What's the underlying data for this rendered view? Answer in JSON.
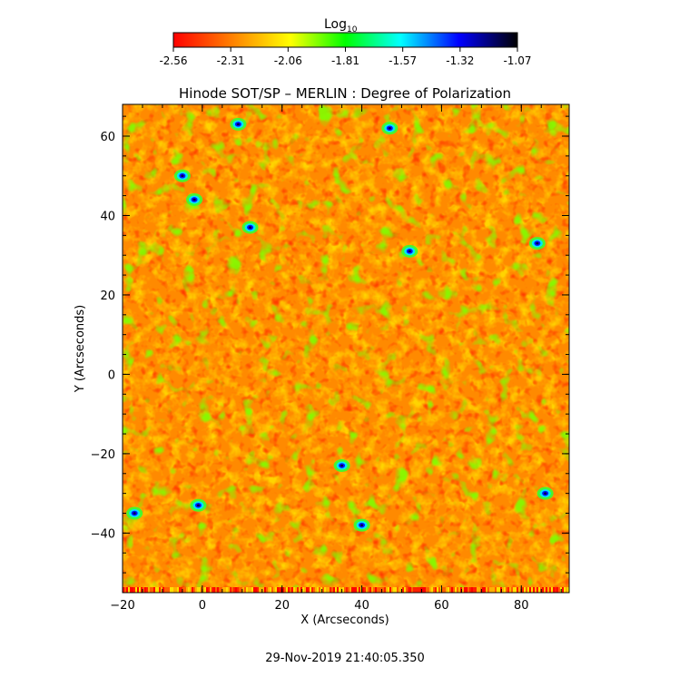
{
  "colorbar": {
    "title_main": "Log",
    "title_sub": "10",
    "ticks": [
      "-2.56",
      "-2.31",
      "-2.06",
      "-1.81",
      "-1.57",
      "-1.32",
      "-1.07"
    ],
    "range": [
      -2.56,
      -1.07
    ],
    "colors": [
      "#ff0000",
      "#ff8000",
      "#ffff00",
      "#00ff00",
      "#00ffff",
      "#0000ff",
      "#000000"
    ]
  },
  "chart_data": {
    "type": "heatmap",
    "title": "Hinode SOT/SP – MERLIN : Degree of Polarization",
    "xlabel": "X (Arcseconds)",
    "ylabel": "Y (Arcseconds)",
    "xlim": [
      -20,
      92
    ],
    "ylim": [
      -55,
      68
    ],
    "xticks": [
      -20,
      0,
      20,
      40,
      60,
      80
    ],
    "yticks": [
      -40,
      -20,
      0,
      20,
      40,
      60
    ],
    "colorscale": "log10, -2.56 to -1.07",
    "background_level": "orange (~ -2.35)",
    "notable_features": [
      {
        "x": 9,
        "y": 63
      },
      {
        "x": 47,
        "y": 62
      },
      {
        "x": -5,
        "y": 50
      },
      {
        "x": -2,
        "y": 44
      },
      {
        "x": 12,
        "y": 37
      },
      {
        "x": 52,
        "y": 31
      },
      {
        "x": 84,
        "y": 33
      },
      {
        "x": -1,
        "y": -33
      },
      {
        "x": -17,
        "y": -35
      },
      {
        "x": 40,
        "y": -38
      },
      {
        "x": 86,
        "y": -30
      },
      {
        "x": 35,
        "y": -23
      }
    ]
  },
  "footer": {
    "timestamp": "29-Nov-2019 21:40:05.350"
  }
}
